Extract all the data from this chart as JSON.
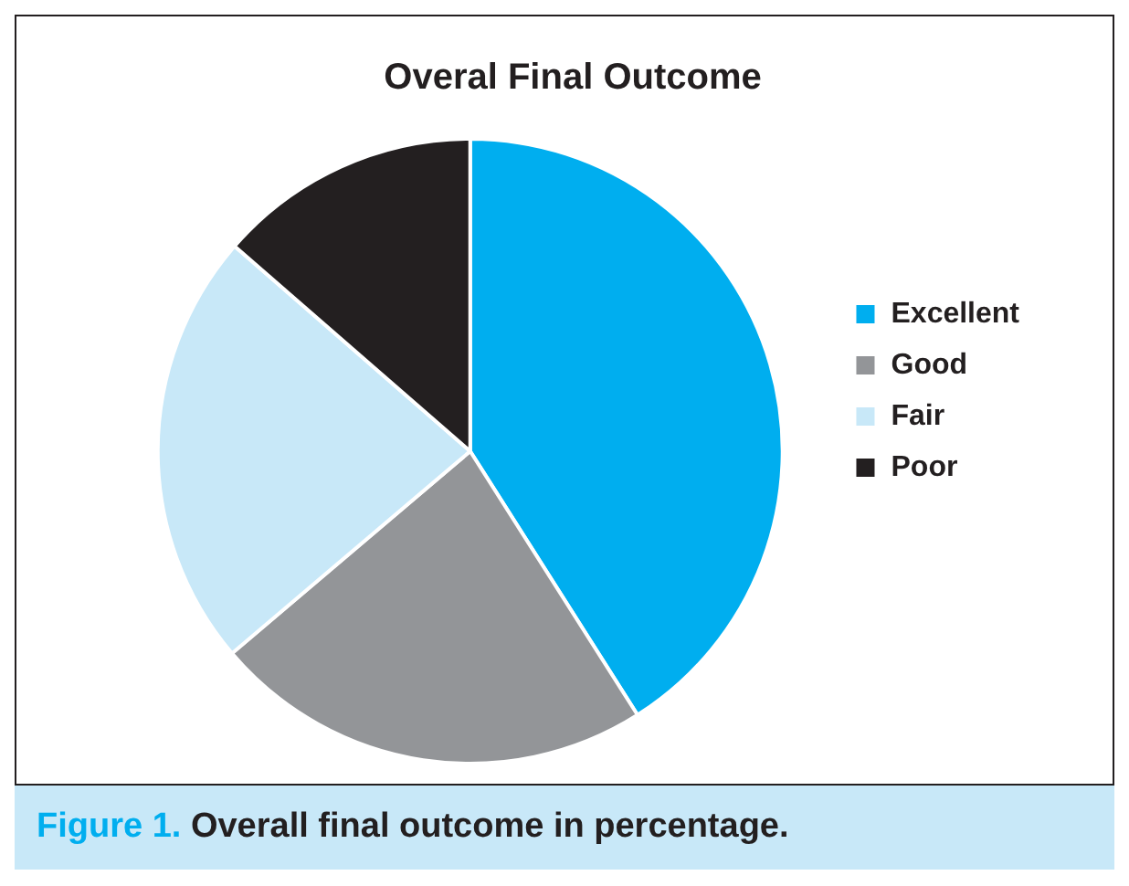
{
  "chart_data": {
    "type": "pie",
    "title": "Overal Final Outcome",
    "categories": [
      "Excellent",
      "Good",
      "Fair",
      "Poor"
    ],
    "values": [
      41,
      22.8,
      22.6,
      13.6
    ],
    "colors": [
      "#00aeef",
      "#939598",
      "#c8e8f8",
      "#231f20"
    ],
    "legend": "right",
    "annotations": [
      "Figure 1. Overall final outcome in percentage."
    ]
  }
}
